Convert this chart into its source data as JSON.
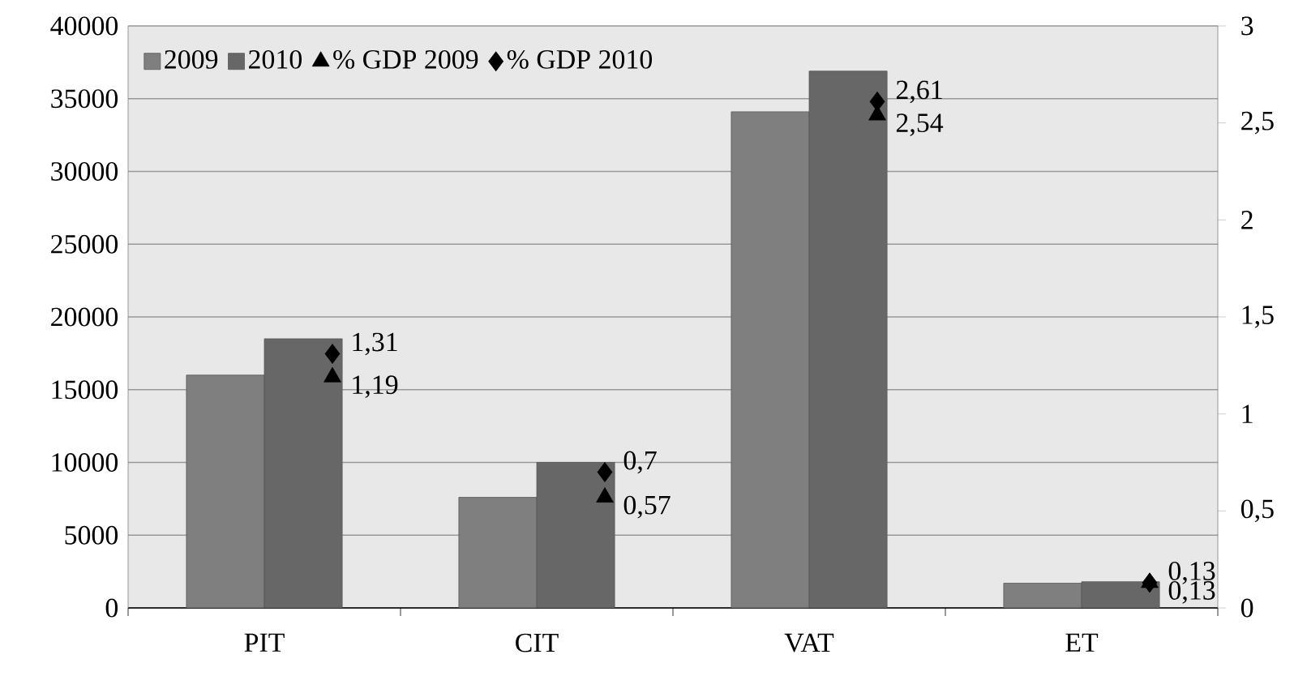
{
  "chart_data": {
    "type": "bar",
    "categories": [
      "PIT",
      "CIT",
      "VAT",
      "ET"
    ],
    "series": [
      {
        "name": "2009",
        "color": "#7f7f7f",
        "values": [
          16000,
          7600,
          34100,
          1700
        ]
      },
      {
        "name": "2010",
        "color": "#676767",
        "values": [
          18500,
          10000,
          36900,
          1800
        ]
      },
      {
        "name": "% GDP 2009",
        "type": "scatter",
        "axis": "y2",
        "marker": "triangle",
        "color": "#000000",
        "x": [
          "PIT",
          "CIT",
          "VAT",
          "ET"
        ],
        "values": [
          1.19,
          0.57,
          2.54,
          0.13
        ],
        "value_labels": [
          "1,19",
          "0,57",
          "2,54",
          "0,13"
        ]
      },
      {
        "name": "% GDP 2010",
        "type": "scatter",
        "axis": "y2",
        "marker": "diamond",
        "color": "#000000",
        "x": [
          "PIT",
          "CIT",
          "VAT",
          "ET"
        ],
        "values": [
          1.31,
          0.7,
          2.61,
          0.13
        ],
        "value_labels": [
          "1,31",
          "0,7",
          "2,61",
          "0,13"
        ]
      }
    ],
    "ylim": [
      0,
      40000
    ],
    "yticks": [
      0,
      5000,
      10000,
      15000,
      20000,
      25000,
      30000,
      35000,
      40000
    ],
    "y2lim": [
      0,
      3
    ],
    "y2ticks": [
      0,
      {
        "value": 0.5,
        "label": "0,5"
      },
      1,
      {
        "value": 1.5,
        "label": "1,5"
      },
      2,
      {
        "value": 2.5,
        "label": "2,5"
      },
      3
    ],
    "grid": "y",
    "legend": "top left"
  }
}
